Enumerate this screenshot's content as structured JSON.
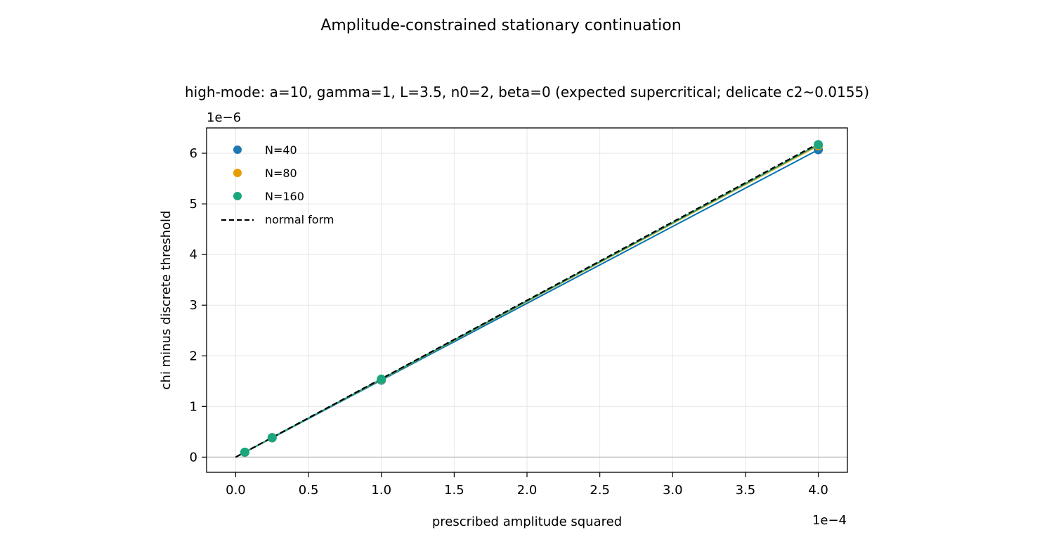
{
  "chart_data": {
    "type": "scatter",
    "suptitle": "Amplitude-constrained stationary continuation",
    "title": "high-mode: a=10, gamma=1, L=3.5, n0=2, beta=0 (expected supercritical; delicate c2~0.0155)",
    "xlabel": "prescribed amplitude squared",
    "ylabel": "chi minus discrete threshold",
    "x_offset_label": "1e−4",
    "y_offset_label": "1e−6",
    "x_scale": 0.0001,
    "y_scale": 1e-06,
    "xlim": [
      -0.2,
      4.2
    ],
    "ylim": [
      -0.3,
      6.5
    ],
    "xticks": [
      0.0,
      0.5,
      1.0,
      1.5,
      2.0,
      2.5,
      3.0,
      3.5,
      4.0
    ],
    "xtick_labels": [
      "0.0",
      "0.5",
      "1.0",
      "1.5",
      "2.0",
      "2.5",
      "3.0",
      "3.5",
      "4.0"
    ],
    "yticks": [
      0,
      1,
      2,
      3,
      4,
      5,
      6
    ],
    "ytick_labels": [
      "0",
      "1",
      "2",
      "3",
      "4",
      "5",
      "6"
    ],
    "grid": true,
    "legend_position": "upper-left",
    "series": [
      {
        "name": "N=40",
        "color": "#1f77b4",
        "line_color": "#0072b2",
        "x": [
          0.0625,
          0.25,
          1.0,
          4.0
        ],
        "y": [
          0.095,
          0.38,
          1.52,
          6.07
        ]
      },
      {
        "name": "N=80",
        "color": "#e69f00",
        "line_color": "#e6a817",
        "x": [
          0.0625,
          0.25,
          1.0,
          4.0
        ],
        "y": [
          0.096,
          0.385,
          1.535,
          6.15
        ]
      },
      {
        "name": "N=160",
        "color": "#1aa67f",
        "line_color": "#14a47a",
        "x": [
          0.0625,
          0.25,
          1.0,
          4.0
        ],
        "y": [
          0.097,
          0.386,
          1.54,
          6.17
        ]
      }
    ],
    "reference_line": {
      "name": "normal form",
      "color": "#000000",
      "style": "dashed",
      "x": [
        0.0,
        4.0
      ],
      "y": [
        0.0,
        6.19
      ]
    },
    "zero_line": {
      "y": 0,
      "color": "#bbbbbb"
    }
  }
}
